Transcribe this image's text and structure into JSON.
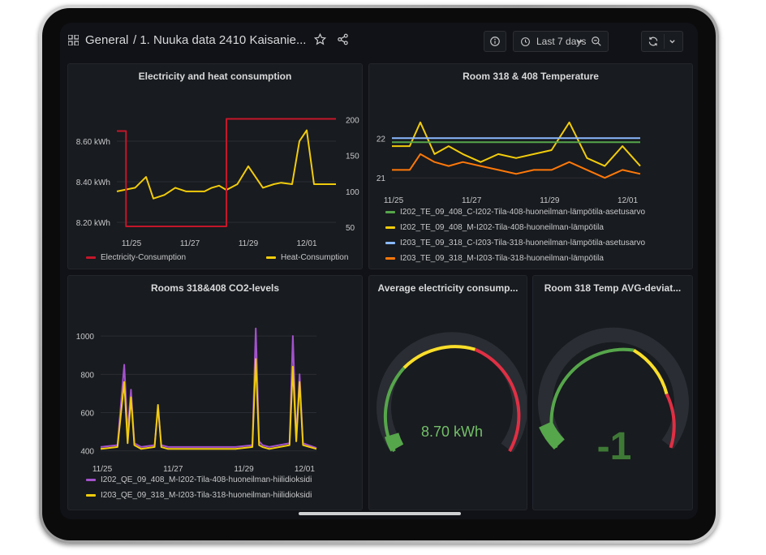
{
  "header": {
    "home": "General",
    "title": "/ 1. Nuuka data 2410 Kaisanie...",
    "time_range": "Last 7 days"
  },
  "panels": {
    "elec_heat": {
      "title": "Electricity and heat consumption",
      "legend": [
        "Electricity-Consumption",
        "Heat-Consumption"
      ]
    },
    "temp": {
      "title": "Room 318 & 408 Temperature",
      "legend": [
        "I202_TE_09_408_C-I202-Tila-408-huoneilman-lämpötila-asetusarvo",
        "I202_TE_09_408_M-I202-Tila-408-huoneilman-lämpötila",
        "I203_TE_09_318_C-I203-Tila-318-huoneilman-lämpötila-asetusarvo",
        "I203_TE_09_318_M-I203-Tila-318-huoneilman-lämpötila"
      ]
    },
    "co2": {
      "title": "Rooms 318&408 CO2-levels",
      "legend": [
        "I202_QE_09_408_M-I202-Tila-408-huoneilman-hiilidioksidi",
        "I203_QE_09_318_M-I203-Tila-318-huoneilman-hiilidioksidi"
      ]
    },
    "avg_elec": {
      "title": "Average electricity consump...",
      "value": "8.70 kWh"
    },
    "temp_dev": {
      "title": "Room 318 Temp AVG-deviat...",
      "value": "-1"
    }
  },
  "colors": {
    "red": "#c4162a",
    "yellow": "#f2cc0c",
    "green": "#56a64b",
    "blue": "#8ab8ff",
    "orange": "#ff780a",
    "purple": "#a352cc",
    "gauge_yellow": "#fade2a",
    "gauge_red": "#e02f44"
  },
  "chart_data": [
    {
      "type": "line",
      "title": "Electricity and heat consumption",
      "x_ticks": [
        "11/25",
        "11/27",
        "11/29",
        "12/01"
      ],
      "y_left_ticks": [
        "8.20 kWh",
        "8.40 kWh",
        "8.60 kWh"
      ],
      "y_right_ticks": [
        "50",
        "100",
        "150",
        "200"
      ],
      "series": [
        {
          "name": "Electricity-Consumption",
          "axis": "left",
          "x": [
            0,
            0.25,
            0.25,
            3.0,
            3.0,
            4.5,
            4.5,
            6.0
          ],
          "y": [
            8.65,
            8.65,
            8.18,
            8.18,
            8.71,
            8.71,
            8.71,
            8.71
          ]
        },
        {
          "name": "Heat-Consumption",
          "axis": "right",
          "x": [
            0,
            0.5,
            0.8,
            1.0,
            1.3,
            1.6,
            1.9,
            2.2,
            2.4,
            2.6,
            2.8,
            3.0,
            3.3,
            3.6,
            4.0,
            4.3,
            4.5,
            4.8,
            5.0,
            5.2,
            5.4,
            5.7,
            6.0
          ],
          "y": [
            100,
            105,
            120,
            90,
            95,
            105,
            100,
            100,
            100,
            105,
            108,
            102,
            110,
            135,
            105,
            110,
            112,
            110,
            170,
            185,
            110,
            110,
            110
          ]
        }
      ]
    },
    {
      "type": "line",
      "title": "Room 318 & 408 Temperature",
      "x_ticks": [
        "11/25",
        "11/27",
        "11/29",
        "12/01"
      ],
      "y_ticks": [
        "21",
        "22"
      ],
      "series": [
        {
          "name": "I202_TE_09_408_C-I202-Tila-408-huoneilman-lämpötila-asetusarvo",
          "x": [
            0,
            7
          ],
          "y": [
            21.9,
            21.9
          ]
        },
        {
          "name": "I202_TE_09_408_M-I202-Tila-408-huoneilman-lämpötila",
          "x": [
            0,
            0.5,
            0.8,
            1.2,
            1.6,
            2.0,
            2.5,
            3.0,
            3.5,
            4.0,
            4.5,
            5.0,
            5.5,
            6.0,
            6.5,
            7.0
          ],
          "y": [
            21.8,
            21.8,
            22.4,
            21.6,
            21.8,
            21.6,
            21.4,
            21.6,
            21.5,
            21.6,
            21.7,
            22.4,
            21.5,
            21.3,
            21.8,
            21.3
          ]
        },
        {
          "name": "I203_TE_09_318_C-I203-Tila-318-huoneilman-lämpötila-asetusarvo",
          "x": [
            0,
            7
          ],
          "y": [
            22.0,
            22.0
          ]
        },
        {
          "name": "I203_TE_09_318_M-I203-Tila-318-huoneilman-lämpötila",
          "x": [
            0,
            0.5,
            0.8,
            1.2,
            1.6,
            2.0,
            2.5,
            3.0,
            3.5,
            4.0,
            4.5,
            5.0,
            5.5,
            6.0,
            6.5,
            7.0
          ],
          "y": [
            21.2,
            21.2,
            21.6,
            21.4,
            21.3,
            21.4,
            21.3,
            21.2,
            21.1,
            21.2,
            21.2,
            21.4,
            21.2,
            21.0,
            21.2,
            21.1
          ]
        }
      ]
    },
    {
      "type": "line",
      "title": "Rooms 318&408 CO2-levels",
      "x_ticks": [
        "11/25",
        "11/27",
        "11/29",
        "12/01"
      ],
      "y_ticks": [
        "400",
        "600",
        "800",
        "1000"
      ],
      "series": [
        {
          "name": "I202_QE_09_408_M-I202-Tila-408-huoneilman-hiilidioksidi",
          "x": [
            0,
            0.5,
            0.7,
            0.8,
            0.9,
            1.0,
            1.2,
            1.6,
            1.7,
            1.8,
            2.0,
            3.0,
            4.0,
            4.5,
            4.6,
            4.7,
            4.8,
            5.0,
            5.6,
            5.7,
            5.8,
            5.9,
            6.0,
            6.4
          ],
          "y": [
            420,
            430,
            850,
            500,
            720,
            440,
            420,
            430,
            620,
            430,
            420,
            420,
            420,
            430,
            1040,
            450,
            430,
            420,
            440,
            1000,
            460,
            800,
            440,
            415
          ]
        },
        {
          "name": "I203_QE_09_318_M-I203-Tila-318-huoneilman-hiilidioksidi",
          "x": [
            0,
            0.5,
            0.7,
            0.8,
            0.9,
            1.0,
            1.2,
            1.6,
            1.7,
            1.8,
            2.0,
            3.0,
            4.0,
            4.5,
            4.6,
            4.7,
            4.8,
            5.0,
            5.6,
            5.7,
            5.8,
            5.9,
            6.0,
            6.4
          ],
          "y": [
            410,
            420,
            760,
            440,
            680,
            430,
            410,
            420,
            640,
            420,
            410,
            410,
            410,
            420,
            880,
            430,
            420,
            410,
            430,
            840,
            450,
            760,
            430,
            410
          ]
        }
      ]
    }
  ]
}
